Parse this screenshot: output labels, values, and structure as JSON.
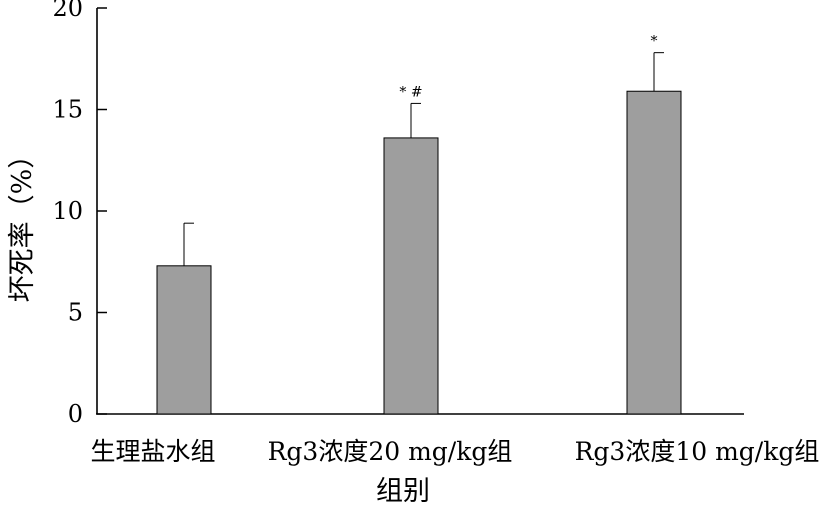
{
  "chart_data": {
    "type": "bar",
    "xlabel": "组别",
    "ylabel": "坏死率（%）",
    "categories": [
      "生理盐水组",
      "Rg3浓度20 mg/kg组",
      "Rg3浓度10 mg/kg组"
    ],
    "values": [
      7.3,
      13.6,
      15.9
    ],
    "errors": [
      2.1,
      1.7,
      1.9
    ],
    "annotations": [
      "",
      "* #",
      "*"
    ],
    "yticks": [
      0,
      5,
      10,
      15,
      20
    ],
    "ylim": [
      0,
      20
    ],
    "bar_color": "#9e9e9e",
    "grid": false,
    "legend": "none"
  }
}
